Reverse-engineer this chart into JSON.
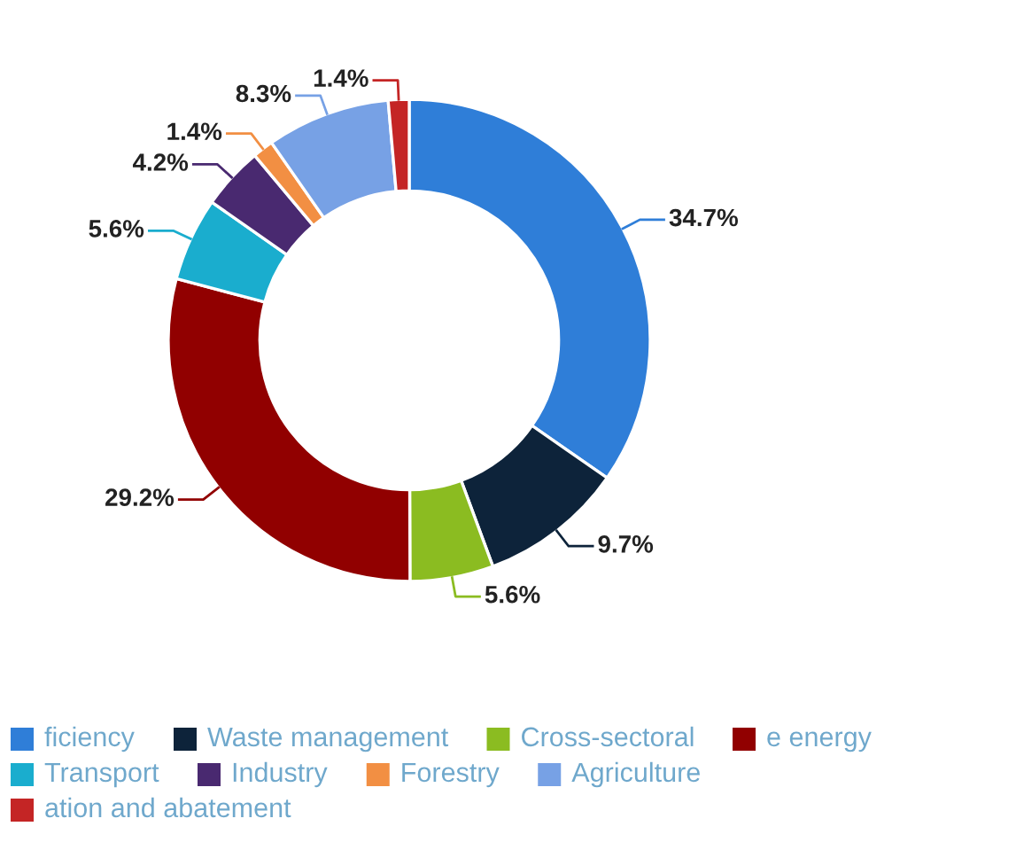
{
  "chart_data": {
    "type": "donut",
    "categories": [
      "ficiency",
      "Waste management",
      "Cross-sectoral",
      "e energy",
      "Transport",
      "Industry",
      "Forestry",
      "Agriculture",
      "ation and abatement"
    ],
    "values": [
      34.7,
      9.7,
      5.6,
      29.2,
      5.6,
      4.2,
      1.4,
      8.3,
      1.4
    ],
    "colors": [
      "#2f7ed8",
      "#0d233a",
      "#8bbc21",
      "#910000",
      "#1aadce",
      "#492970",
      "#f28f43",
      "#77a1e5",
      "#c42525"
    ],
    "value_labels": [
      "34.7%",
      "9.7%",
      "5.6%",
      "29.2%",
      "5.6%",
      "4.2%",
      "1.4%",
      "8.3%",
      "1.4%"
    ],
    "legend": "bottom"
  }
}
